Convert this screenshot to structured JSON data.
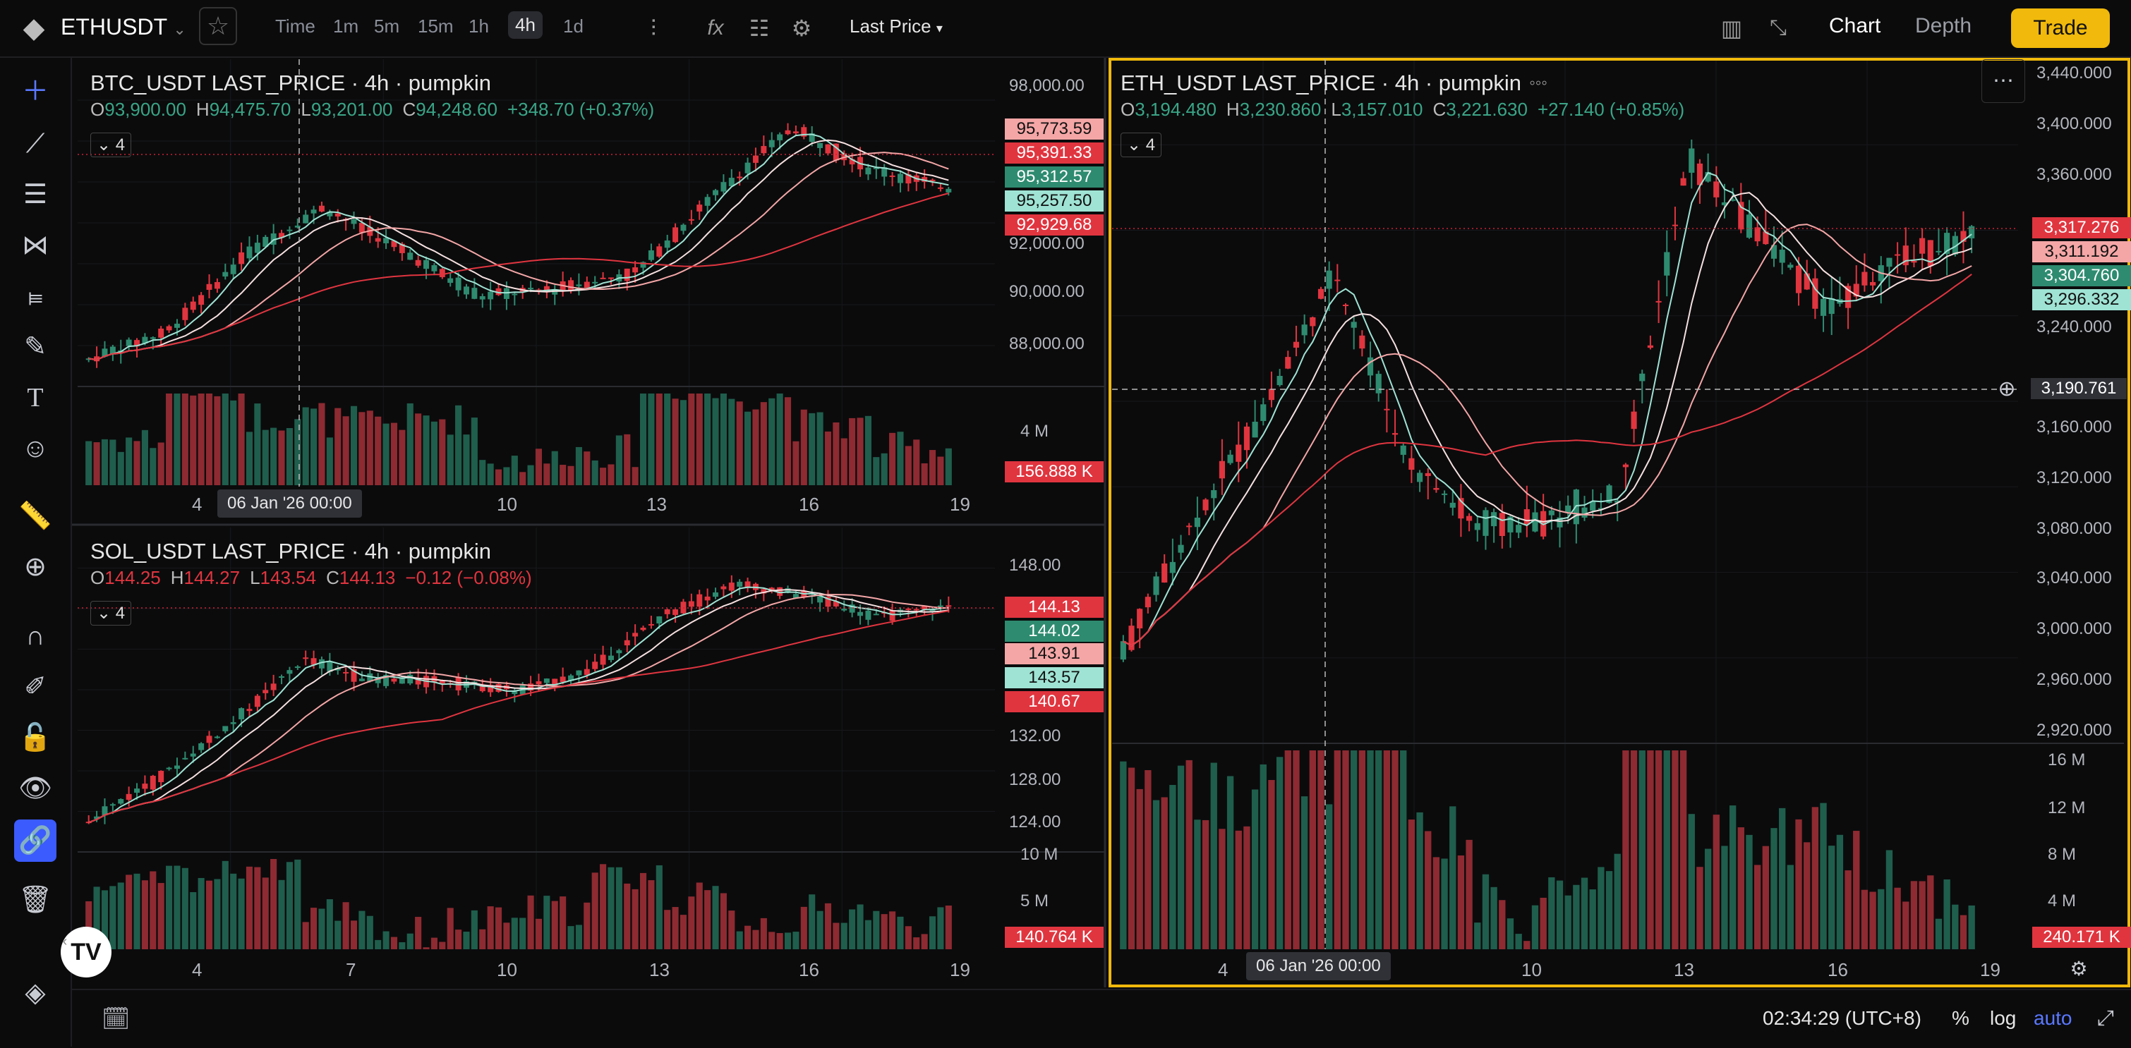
{
  "topbar": {
    "symbol": "ETHUSDT",
    "intervals": [
      "Time",
      "1m",
      "5m",
      "15m",
      "1h",
      "4h",
      "1d"
    ],
    "selected_interval": "4h",
    "price_source": "Last Price",
    "tabs": [
      "Chart",
      "Depth"
    ],
    "trade_label": "Trade"
  },
  "bottombar": {
    "clock": "02:34:29 (UTC+8)",
    "percent": "%",
    "log": "log",
    "auto": "auto"
  },
  "panels": {
    "btc": {
      "title": "BTC_USDT LAST_PRICE · 4h · pumpkin",
      "ohlc": {
        "o": "O",
        "o_val": "93,900.00",
        "h": "H",
        "h_val": "94,475.70",
        "l": "L",
        "l_val": "93,201.00",
        "c": "C",
        "c_val": "94,248.60",
        "chg": "+348.70 (+0.37%)"
      },
      "ma_count": "4",
      "price_axis": [
        "98,000.00",
        "92,000.00",
        "90,000.00",
        "88,000.00"
      ],
      "tags": [
        "95,773.59",
        "95,391.33",
        "95,312.57",
        "95,257.50",
        "92,929.68"
      ],
      "volume_axis": [
        "4 M"
      ],
      "volume_tag": "156.888 K",
      "x_axis": [
        "4",
        "10",
        "13",
        "16",
        "19"
      ],
      "crosshair_date": "06 Jan '26   00:00"
    },
    "sol": {
      "title": "SOL_USDT LAST_PRICE · 4h · pumpkin",
      "ohlc": {
        "o": "O",
        "o_val": "144.25",
        "h": "H",
        "h_val": "144.27",
        "l": "L",
        "l_val": "143.54",
        "c": "C",
        "c_val": "144.13",
        "chg": "−0.12 (−0.08%)"
      },
      "ma_count": "4",
      "price_axis": [
        "148.00",
        "132.00",
        "128.00",
        "124.00"
      ],
      "tags": [
        "144.13",
        "144.02",
        "143.91",
        "143.57",
        "140.67"
      ],
      "volume_axis": [
        "10 M",
        "5 M"
      ],
      "volume_tag": "140.764 K",
      "x_axis": [
        "4",
        "7",
        "10",
        "13",
        "16",
        "19"
      ]
    },
    "eth": {
      "title": "ETH_USDT LAST_PRICE · 4h · pumpkin",
      "ohlc": {
        "o": "O",
        "o_val": "3,194.480",
        "h": "H",
        "h_val": "3,230.860",
        "l": "L",
        "l_val": "3,157.010",
        "c": "C",
        "c_val": "3,221.630",
        "chg": "+27.140 (+0.85%)"
      },
      "ma_count": "4",
      "price_axis": [
        "3,440.000",
        "3,400.000",
        "3,360.000",
        "3,240.000",
        "3,160.000",
        "3,120.000",
        "3,080.000",
        "3,040.000",
        "3,000.000",
        "2,960.000",
        "2,920.000"
      ],
      "tags": [
        "3,317.276",
        "3,311.192",
        "3,304.760",
        "3,296.332"
      ],
      "crosshair_price": "3,190.761",
      "volume_axis": [
        "16 M",
        "12 M",
        "8 M",
        "4 M"
      ],
      "volume_tag": "240.171 K",
      "x_axis": [
        "4",
        "10",
        "13",
        "16",
        "19"
      ],
      "crosshair_date": "06 Jan '26   00:00"
    }
  },
  "colors": {
    "up": "#2e8b6f",
    "down": "#e0353f",
    "accent": "#f0b90b",
    "blue": "#5a78ff",
    "ma_light": "#9fe3d4",
    "ma_pink": "#f4a6a6",
    "ma_red": "#e0353f"
  }
}
